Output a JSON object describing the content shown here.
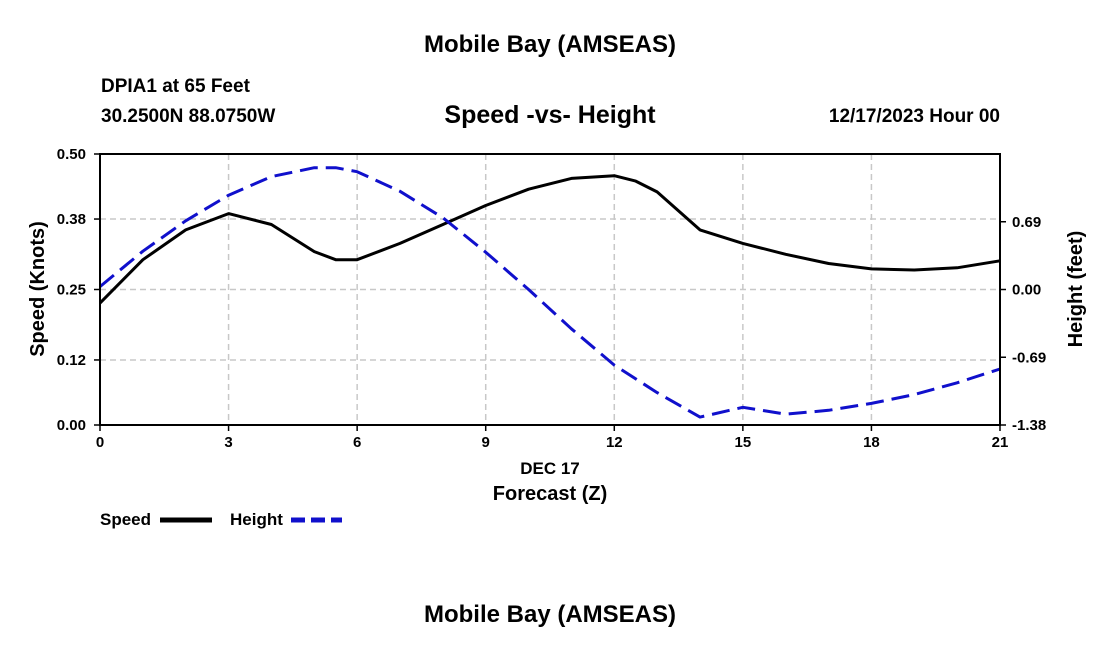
{
  "header": {
    "title": "Mobile Bay (AMSEAS)",
    "station": "DPIA1 at 65 Feet",
    "coords": "30.2500N  88.0750W",
    "datetime": "12/17/2023 Hour 00",
    "footer_title": "Mobile Bay (AMSEAS)"
  },
  "chart_data": {
    "type": "line",
    "title": "Speed -vs- Height",
    "xlabel": "Forecast (Z)",
    "xlabel_date": "DEC 17",
    "ylabel": "Speed (Knots)",
    "y2label": "Height (feet)",
    "xlim": [
      0,
      21
    ],
    "ylim": [
      0,
      0.5
    ],
    "y2lim": [
      -1.38,
      1.38
    ],
    "x_ticks": [
      "0",
      "3",
      "6",
      "9",
      "12",
      "15",
      "18",
      "21"
    ],
    "y_ticks": [
      "0.00",
      "0.12",
      "0.25",
      "0.38",
      "0.50"
    ],
    "y2_ticks": [
      "-1.38",
      "-0.69",
      "0.00",
      "0.69"
    ],
    "grid": true,
    "legend_position": "bottom-left",
    "series": [
      {
        "name": "Speed",
        "axis": "left",
        "color": "#000000",
        "style": "solid",
        "x": [
          0,
          1,
          2,
          3,
          4,
          5,
          5.5,
          6,
          7,
          8,
          9,
          10,
          11,
          12,
          12.5,
          13,
          14,
          15,
          16,
          17,
          18,
          19,
          20,
          21
        ],
        "values": [
          0.225,
          0.305,
          0.36,
          0.39,
          0.37,
          0.32,
          0.305,
          0.305,
          0.335,
          0.37,
          0.405,
          0.435,
          0.455,
          0.46,
          0.45,
          0.43,
          0.36,
          0.335,
          0.315,
          0.298,
          0.288,
          0.286,
          0.29,
          0.303
        ]
      },
      {
        "name": "Height",
        "axis": "right",
        "color": "#1010cc",
        "style": "dashed",
        "x": [
          0,
          1,
          2,
          3,
          4,
          5,
          5.5,
          6,
          7,
          8,
          9,
          10,
          11,
          12,
          13,
          14,
          15,
          16,
          17,
          18,
          19,
          20,
          21
        ],
        "values": [
          0.03,
          0.39,
          0.7,
          0.96,
          1.15,
          1.24,
          1.24,
          1.2,
          1.0,
          0.73,
          0.38,
          0.0,
          -0.4,
          -0.77,
          -1.05,
          -1.3,
          -1.2,
          -1.27,
          -1.23,
          -1.16,
          -1.07,
          -0.95,
          -0.81
        ]
      }
    ]
  },
  "legend": [
    {
      "label": "Speed",
      "color": "#000000",
      "style": "solid"
    },
    {
      "label": "Height",
      "color": "#1010cc",
      "style": "dashed"
    }
  ]
}
